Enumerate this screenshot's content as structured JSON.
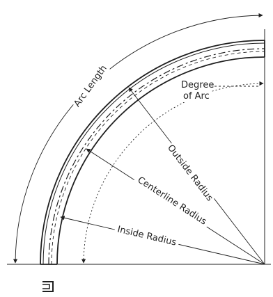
{
  "diagram": {
    "labels": {
      "arc_length": "Arc Length",
      "degree_of_arc_line1": "Degree",
      "degree_of_arc_line2": "of Arc",
      "outside_radius": "Outside Radius",
      "centerline_radius": "Centerline Radius",
      "inside_radius": "Inside Radius"
    },
    "profile_icon": "channel-section-icon",
    "colors": {
      "line": "#1f1f1f",
      "background": "#ffffff"
    }
  }
}
